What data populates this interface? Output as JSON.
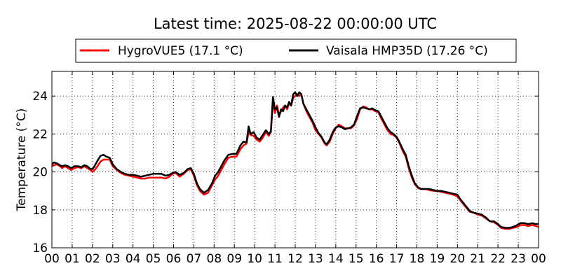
{
  "chart_data": {
    "type": "line",
    "title": "Latest time: 2025-08-22 00:00:00 UTC",
    "xlabel": "",
    "ylabel": "Temperature (°C)",
    "xlim": [
      0,
      24
    ],
    "ylim": [
      16,
      25.3
    ],
    "grid": true,
    "legend_position": "top",
    "x_tick_labels": [
      "00",
      "01",
      "02",
      "03",
      "04",
      "05",
      "06",
      "07",
      "08",
      "09",
      "10",
      "11",
      "12",
      "13",
      "14",
      "15",
      "16",
      "17",
      "18",
      "19",
      "20",
      "21",
      "22",
      "23",
      "00"
    ],
    "y_ticks": [
      16,
      18,
      20,
      22,
      24
    ],
    "y_tick_labels": [
      "16",
      "18",
      "20",
      "22",
      "24"
    ],
    "series": [
      {
        "name": "HygroVUE5 (17.1 °C)",
        "color": "#ff0000",
        "points": [
          [
            0.0,
            20.3
          ],
          [
            0.1,
            20.35
          ],
          [
            0.25,
            20.4
          ],
          [
            0.4,
            20.3
          ],
          [
            0.5,
            20.2
          ],
          [
            0.65,
            20.3
          ],
          [
            0.8,
            20.2
          ],
          [
            0.95,
            20.1
          ],
          [
            1.1,
            20.2
          ],
          [
            1.3,
            20.25
          ],
          [
            1.45,
            20.2
          ],
          [
            1.6,
            20.3
          ],
          [
            1.75,
            20.2
          ],
          [
            1.9,
            20.1
          ],
          [
            2.0,
            20.0
          ],
          [
            2.1,
            20.1
          ],
          [
            2.25,
            20.3
          ],
          [
            2.4,
            20.55
          ],
          [
            2.55,
            20.65
          ],
          [
            2.7,
            20.65
          ],
          [
            2.85,
            20.65
          ],
          [
            3.0,
            20.3
          ],
          [
            3.2,
            20.1
          ],
          [
            3.4,
            19.95
          ],
          [
            3.6,
            19.85
          ],
          [
            3.8,
            19.8
          ],
          [
            4.0,
            19.75
          ],
          [
            4.2,
            19.7
          ],
          [
            4.4,
            19.65
          ],
          [
            4.6,
            19.65
          ],
          [
            4.8,
            19.7
          ],
          [
            5.0,
            19.7
          ],
          [
            5.2,
            19.7
          ],
          [
            5.4,
            19.7
          ],
          [
            5.6,
            19.65
          ],
          [
            5.8,
            19.75
          ],
          [
            5.95,
            19.9
          ],
          [
            6.1,
            19.95
          ],
          [
            6.3,
            19.75
          ],
          [
            6.5,
            19.9
          ],
          [
            6.7,
            20.1
          ],
          [
            6.85,
            20.15
          ],
          [
            7.0,
            19.8
          ],
          [
            7.15,
            19.3
          ],
          [
            7.3,
            19.0
          ],
          [
            7.5,
            18.8
          ],
          [
            7.7,
            18.9
          ],
          [
            7.9,
            19.3
          ],
          [
            8.05,
            19.6
          ],
          [
            8.2,
            19.8
          ],
          [
            8.35,
            20.1
          ],
          [
            8.5,
            20.4
          ],
          [
            8.7,
            20.75
          ],
          [
            8.9,
            20.8
          ],
          [
            9.1,
            20.8
          ],
          [
            9.3,
            21.2
          ],
          [
            9.45,
            21.4
          ],
          [
            9.6,
            21.5
          ],
          [
            9.7,
            22.1
          ],
          [
            9.8,
            21.95
          ],
          [
            9.95,
            21.9
          ],
          [
            10.1,
            21.7
          ],
          [
            10.25,
            21.6
          ],
          [
            10.4,
            21.8
          ],
          [
            10.55,
            22.1
          ],
          [
            10.7,
            21.9
          ],
          [
            10.8,
            22.2
          ],
          [
            10.9,
            23.7
          ],
          [
            11.0,
            23.1
          ],
          [
            11.1,
            23.5
          ],
          [
            11.2,
            23.0
          ],
          [
            11.3,
            23.2
          ],
          [
            11.4,
            23.4
          ],
          [
            11.5,
            23.5
          ],
          [
            11.6,
            23.3
          ],
          [
            11.7,
            23.6
          ],
          [
            11.8,
            23.5
          ],
          [
            11.9,
            23.9
          ],
          [
            12.0,
            24.0
          ],
          [
            12.1,
            24.1
          ],
          [
            12.2,
            24.0
          ],
          [
            12.3,
            24.1
          ],
          [
            12.4,
            23.6
          ],
          [
            12.55,
            23.2
          ],
          [
            12.7,
            22.9
          ],
          [
            12.85,
            22.6
          ],
          [
            13.0,
            22.2
          ],
          [
            13.15,
            22.0
          ],
          [
            13.3,
            21.8
          ],
          [
            13.45,
            21.5
          ],
          [
            13.55,
            21.4
          ],
          [
            13.7,
            21.6
          ],
          [
            13.85,
            22.0
          ],
          [
            14.0,
            22.3
          ],
          [
            14.15,
            22.5
          ],
          [
            14.3,
            22.4
          ],
          [
            14.45,
            22.3
          ],
          [
            14.6,
            22.3
          ],
          [
            14.75,
            22.3
          ],
          [
            14.9,
            22.45
          ],
          [
            15.05,
            22.8
          ],
          [
            15.2,
            23.3
          ],
          [
            15.35,
            23.45
          ],
          [
            15.5,
            23.4
          ],
          [
            15.65,
            23.3
          ],
          [
            15.8,
            23.3
          ],
          [
            15.95,
            23.2
          ],
          [
            16.1,
            23.15
          ],
          [
            16.25,
            22.8
          ],
          [
            16.4,
            22.5
          ],
          [
            16.55,
            22.2
          ],
          [
            16.7,
            22.0
          ],
          [
            16.85,
            21.95
          ],
          [
            17.0,
            21.8
          ],
          [
            17.15,
            21.5
          ],
          [
            17.3,
            21.1
          ],
          [
            17.45,
            20.8
          ],
          [
            17.6,
            20.2
          ],
          [
            17.75,
            19.7
          ],
          [
            17.9,
            19.35
          ],
          [
            18.05,
            19.15
          ],
          [
            18.2,
            19.1
          ],
          [
            18.4,
            19.1
          ],
          [
            18.6,
            19.05
          ],
          [
            18.8,
            19.0
          ],
          [
            19.0,
            19.0
          ],
          [
            19.2,
            18.95
          ],
          [
            19.4,
            18.9
          ],
          [
            19.6,
            18.85
          ],
          [
            19.8,
            18.8
          ],
          [
            20.0,
            18.7
          ],
          [
            20.15,
            18.5
          ],
          [
            20.3,
            18.3
          ],
          [
            20.45,
            18.1
          ],
          [
            20.6,
            17.9
          ],
          [
            20.8,
            17.85
          ],
          [
            21.0,
            17.75
          ],
          [
            21.2,
            17.7
          ],
          [
            21.4,
            17.55
          ],
          [
            21.6,
            17.4
          ],
          [
            21.8,
            17.35
          ],
          [
            22.0,
            17.2
          ],
          [
            22.15,
            17.05
          ],
          [
            22.35,
            17.0
          ],
          [
            22.55,
            17.0
          ],
          [
            22.75,
            17.05
          ],
          [
            22.95,
            17.1
          ],
          [
            23.1,
            17.2
          ],
          [
            23.3,
            17.2
          ],
          [
            23.5,
            17.15
          ],
          [
            23.7,
            17.2
          ],
          [
            23.85,
            17.15
          ],
          [
            24.0,
            17.1
          ]
        ]
      },
      {
        "name": "Vaisala HMP35D (17.26 °C)",
        "color": "#000000",
        "points": [
          [
            0.0,
            20.4
          ],
          [
            0.1,
            20.5
          ],
          [
            0.25,
            20.45
          ],
          [
            0.4,
            20.35
          ],
          [
            0.5,
            20.3
          ],
          [
            0.65,
            20.35
          ],
          [
            0.8,
            20.3
          ],
          [
            0.95,
            20.2
          ],
          [
            1.1,
            20.3
          ],
          [
            1.3,
            20.3
          ],
          [
            1.45,
            20.25
          ],
          [
            1.6,
            20.35
          ],
          [
            1.75,
            20.3
          ],
          [
            1.9,
            20.15
          ],
          [
            2.0,
            20.15
          ],
          [
            2.1,
            20.3
          ],
          [
            2.25,
            20.6
          ],
          [
            2.4,
            20.85
          ],
          [
            2.55,
            20.9
          ],
          [
            2.7,
            20.8
          ],
          [
            2.85,
            20.75
          ],
          [
            3.0,
            20.4
          ],
          [
            3.2,
            20.15
          ],
          [
            3.4,
            20.0
          ],
          [
            3.6,
            19.9
          ],
          [
            3.8,
            19.85
          ],
          [
            4.0,
            19.85
          ],
          [
            4.2,
            19.8
          ],
          [
            4.4,
            19.75
          ],
          [
            4.6,
            19.8
          ],
          [
            4.8,
            19.85
          ],
          [
            5.0,
            19.9
          ],
          [
            5.2,
            19.9
          ],
          [
            5.4,
            19.9
          ],
          [
            5.6,
            19.8
          ],
          [
            5.8,
            19.85
          ],
          [
            5.95,
            19.95
          ],
          [
            6.1,
            20.0
          ],
          [
            6.3,
            19.85
          ],
          [
            6.5,
            19.95
          ],
          [
            6.7,
            20.15
          ],
          [
            6.85,
            20.2
          ],
          [
            7.0,
            19.9
          ],
          [
            7.15,
            19.4
          ],
          [
            7.3,
            19.1
          ],
          [
            7.5,
            18.9
          ],
          [
            7.7,
            19.05
          ],
          [
            7.9,
            19.4
          ],
          [
            8.05,
            19.8
          ],
          [
            8.2,
            20.0
          ],
          [
            8.35,
            20.3
          ],
          [
            8.5,
            20.6
          ],
          [
            8.7,
            20.9
          ],
          [
            8.9,
            20.95
          ],
          [
            9.1,
            20.95
          ],
          [
            9.3,
            21.4
          ],
          [
            9.45,
            21.6
          ],
          [
            9.6,
            21.55
          ],
          [
            9.7,
            22.4
          ],
          [
            9.8,
            22.0
          ],
          [
            9.95,
            22.1
          ],
          [
            10.1,
            21.8
          ],
          [
            10.25,
            21.7
          ],
          [
            10.4,
            21.95
          ],
          [
            10.55,
            22.2
          ],
          [
            10.7,
            22.0
          ],
          [
            10.8,
            22.1
          ],
          [
            10.9,
            23.95
          ],
          [
            11.0,
            23.3
          ],
          [
            11.1,
            23.4
          ],
          [
            11.2,
            22.9
          ],
          [
            11.3,
            23.3
          ],
          [
            11.4,
            23.2
          ],
          [
            11.5,
            23.5
          ],
          [
            11.6,
            23.4
          ],
          [
            11.7,
            23.7
          ],
          [
            11.8,
            23.5
          ],
          [
            11.9,
            24.1
          ],
          [
            12.0,
            24.2
          ],
          [
            12.1,
            24.0
          ],
          [
            12.2,
            24.2
          ],
          [
            12.3,
            24.1
          ],
          [
            12.4,
            23.6
          ],
          [
            12.55,
            23.3
          ],
          [
            12.7,
            23.0
          ],
          [
            12.85,
            22.7
          ],
          [
            13.0,
            22.35
          ],
          [
            13.15,
            22.05
          ],
          [
            13.3,
            21.85
          ],
          [
            13.45,
            21.55
          ],
          [
            13.55,
            21.45
          ],
          [
            13.7,
            21.7
          ],
          [
            13.85,
            22.1
          ],
          [
            14.0,
            22.35
          ],
          [
            14.15,
            22.4
          ],
          [
            14.3,
            22.35
          ],
          [
            14.45,
            22.25
          ],
          [
            14.6,
            22.3
          ],
          [
            14.75,
            22.35
          ],
          [
            14.9,
            22.5
          ],
          [
            15.05,
            22.95
          ],
          [
            15.2,
            23.35
          ],
          [
            15.35,
            23.4
          ],
          [
            15.5,
            23.35
          ],
          [
            15.65,
            23.3
          ],
          [
            15.8,
            23.35
          ],
          [
            15.95,
            23.25
          ],
          [
            16.1,
            23.2
          ],
          [
            16.25,
            22.9
          ],
          [
            16.4,
            22.6
          ],
          [
            16.55,
            22.3
          ],
          [
            16.7,
            22.1
          ],
          [
            16.85,
            22.0
          ],
          [
            17.0,
            21.85
          ],
          [
            17.15,
            21.55
          ],
          [
            17.3,
            21.2
          ],
          [
            17.45,
            20.9
          ],
          [
            17.6,
            20.3
          ],
          [
            17.75,
            19.8
          ],
          [
            17.9,
            19.4
          ],
          [
            18.05,
            19.2
          ],
          [
            18.2,
            19.1
          ],
          [
            18.4,
            19.1
          ],
          [
            18.6,
            19.1
          ],
          [
            18.8,
            19.05
          ],
          [
            19.0,
            19.0
          ],
          [
            19.2,
            19.0
          ],
          [
            19.4,
            18.95
          ],
          [
            19.6,
            18.9
          ],
          [
            19.8,
            18.85
          ],
          [
            20.0,
            18.8
          ],
          [
            20.15,
            18.55
          ],
          [
            20.3,
            18.35
          ],
          [
            20.45,
            18.15
          ],
          [
            20.6,
            17.95
          ],
          [
            20.8,
            17.85
          ],
          [
            21.0,
            17.8
          ],
          [
            21.2,
            17.75
          ],
          [
            21.4,
            17.6
          ],
          [
            21.6,
            17.4
          ],
          [
            21.8,
            17.4
          ],
          [
            22.0,
            17.25
          ],
          [
            22.15,
            17.1
          ],
          [
            22.35,
            17.05
          ],
          [
            22.55,
            17.05
          ],
          [
            22.75,
            17.1
          ],
          [
            22.95,
            17.2
          ],
          [
            23.1,
            17.3
          ],
          [
            23.3,
            17.3
          ],
          [
            23.5,
            17.25
          ],
          [
            23.7,
            17.3
          ],
          [
            23.85,
            17.25
          ],
          [
            24.0,
            17.26
          ]
        ]
      }
    ]
  }
}
